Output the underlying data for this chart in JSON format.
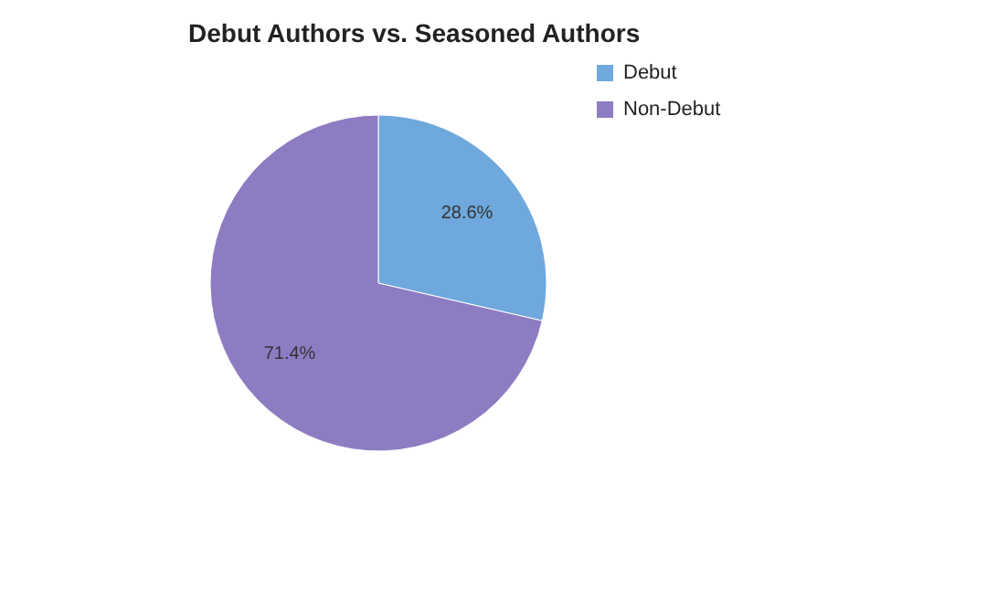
{
  "chart_data": {
    "type": "pie",
    "title": "Debut Authors vs. Seasoned Authors",
    "categories": [
      "Debut",
      "Non-Debut"
    ],
    "values": [
      28.6,
      71.4
    ],
    "colors": [
      "#6fa8dc",
      "#8e7cc3"
    ],
    "value_labels": [
      "28.6%",
      "71.4%"
    ],
    "legend": "top right"
  }
}
